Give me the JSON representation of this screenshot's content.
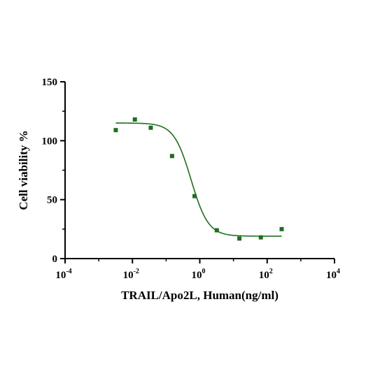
{
  "chart_data": {
    "type": "scatter",
    "xlabel": "TRAIL/Apo2L, Human(ng/ml)",
    "ylabel": "Cell viability %",
    "x_scale": "log10",
    "xlim": [
      0.0001,
      10000
    ],
    "ylim": [
      0,
      150
    ],
    "x_ticks": [
      {
        "value": 0.0001,
        "base": "10",
        "exp": "-4"
      },
      {
        "value": 0.01,
        "base": "10",
        "exp": "-2"
      },
      {
        "value": 1,
        "base": "10",
        "exp": "0"
      },
      {
        "value": 100,
        "base": "10",
        "exp": "2"
      },
      {
        "value": 10000,
        "base": "10",
        "exp": "4"
      }
    ],
    "y_ticks": [
      {
        "value": 0,
        "label": "0"
      },
      {
        "value": 50,
        "label": "50"
      },
      {
        "value": 100,
        "label": "100"
      },
      {
        "value": 150,
        "label": "150"
      }
    ],
    "grid": false,
    "legend": "none",
    "series": [
      {
        "points": [
          {
            "x": 0.0032,
            "y": 109
          },
          {
            "x": 0.0118,
            "y": 118
          },
          {
            "x": 0.035,
            "y": 111
          },
          {
            "x": 0.15,
            "y": 87
          },
          {
            "x": 0.7,
            "y": 53
          },
          {
            "x": 3.2,
            "y": 24
          },
          {
            "x": 15,
            "y": 17
          },
          {
            "x": 65,
            "y": 18
          },
          {
            "x": 270,
            "y": 25
          }
        ],
        "fit": {
          "model": "4PL",
          "top": 115,
          "bottom": 19,
          "ec50": 0.55,
          "hill": 1.7,
          "x_range": [
            0.0032,
            270
          ]
        }
      }
    ],
    "colors": {
      "marker": "#1f6e1f",
      "curve": "#1f6e1f",
      "axis": "#000000"
    }
  }
}
